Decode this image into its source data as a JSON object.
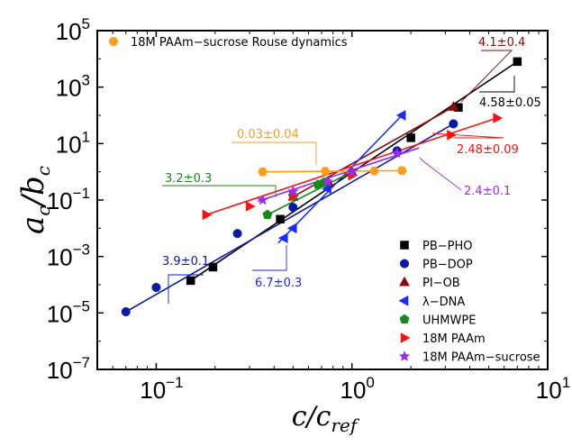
{
  "chart_data": {
    "type": "scatter",
    "xscale": "log",
    "yscale": "log",
    "xlim": [
      0.05,
      10
    ],
    "ylim": [
      1e-07,
      100000.0
    ],
    "xlabel_main": "c/c",
    "xlabel_sub": "ref",
    "ylabel_a": "a",
    "ylabel_a_sub": "c",
    "ylabel_b": "/b",
    "ylabel_b_sub": "c",
    "xticks": [
      {
        "value": 0.1,
        "base": "10",
        "exp": "−1"
      },
      {
        "value": 1,
        "base": "10",
        "exp": "0"
      },
      {
        "value": 10,
        "base": "10",
        "exp": "1"
      }
    ],
    "yticks": [
      {
        "value": 1e-07,
        "base": "10",
        "exp": "−7"
      },
      {
        "value": 1e-05,
        "base": "10",
        "exp": "−5"
      },
      {
        "value": 0.001,
        "base": "10",
        "exp": "−3"
      },
      {
        "value": 0.1,
        "base": "10",
        "exp": "−1"
      },
      {
        "value": 10,
        "base": "10",
        "exp": "1"
      },
      {
        "value": 1000,
        "base": "10",
        "exp": "3"
      },
      {
        "value": 100000,
        "base": "10",
        "exp": "5"
      }
    ],
    "legend_placement": "bottom-right",
    "top_legend": {
      "label": "18M PAAm−sucrose Rouse dynamics",
      "marker": "hexagon",
      "color": "#ff9c1c"
    },
    "series": [
      {
        "name": "PB−PHO",
        "marker": "square",
        "color": "#000000",
        "x": [
          0.15,
          0.195,
          0.43,
          2.0,
          3.5,
          7.0
        ],
        "y": [
          0.00014,
          0.00042,
          0.021,
          16,
          190,
          8000
        ],
        "fit": {
          "x": [
            0.15,
            7.0
          ],
          "y": [
            0.00014,
            8000
          ]
        }
      },
      {
        "name": "PB−DOP",
        "marker": "circle",
        "color": "#0a1aa6",
        "x": [
          0.07,
          0.1,
          0.26,
          0.5,
          1.7,
          3.3
        ],
        "y": [
          1.1e-05,
          8e-05,
          0.0065,
          0.055,
          5.5,
          50
        ],
        "fit": {
          "x": [
            0.07,
            3.3
          ],
          "y": [
            1.1e-05,
            50
          ]
        }
      },
      {
        "name": "PI−OB",
        "marker": "triangle-up",
        "color": "#8b0a0a",
        "x": [
          0.5,
          0.76,
          1.0,
          3.3
        ],
        "y": [
          0.13,
          0.4,
          1.0,
          200
        ],
        "fit": {
          "x": [
            0.5,
            3.3
          ],
          "y": [
            0.13,
            200
          ]
        }
      },
      {
        "name": "λ−DNA",
        "marker": "triangle-left",
        "color": "#1a2bff",
        "x": [
          0.45,
          0.5,
          0.75,
          1.8
        ],
        "y": [
          0.0045,
          0.01,
          0.25,
          100
        ],
        "fit": {
          "x": [
            0.42,
            1.8
          ],
          "y": [
            0.003,
            100
          ]
        }
      },
      {
        "name": "UHMWPE",
        "marker": "pentagon",
        "color": "#168a16",
        "x": [
          0.37,
          0.5,
          0.67,
          0.72
        ],
        "y": [
          0.03,
          0.14,
          0.35,
          0.42
        ],
        "fit": {
          "x": [
            0.37,
            1.0
          ],
          "y": [
            0.03,
            1.0
          ]
        }
      },
      {
        "name": "18M PAAm",
        "marker": "triangle-right",
        "color": "#ff1010",
        "x": [
          0.18,
          0.3,
          0.5,
          1.0,
          3.2,
          5.5
        ],
        "y": [
          0.03,
          0.06,
          0.14,
          0.75,
          20,
          80
        ],
        "fit": {
          "x": [
            0.18,
            5.5
          ],
          "y": [
            0.03,
            80
          ]
        }
      },
      {
        "name": "18M PAAm−sucrose",
        "marker": "star",
        "color": "#9b2bf0",
        "x": [
          0.35,
          0.5,
          0.75,
          1.0,
          1.7
        ],
        "y": [
          0.1,
          0.2,
          0.45,
          1.0,
          4.5
        ],
        "fit": {
          "x": [
            0.33,
            2.2
          ],
          "y": [
            0.09,
            7
          ]
        }
      },
      {
        "name": "18M PAAm−sucrose Rouse dynamics",
        "marker": "hexagon",
        "color": "#ff9c1c",
        "x": [
          0.35,
          0.73,
          1.3,
          1.8
        ],
        "y": [
          1.0,
          1.05,
          1.07,
          1.1
        ],
        "fit": {
          "x": [
            0.35,
            1.8
          ],
          "y": [
            1.0,
            1.1
          ]
        }
      }
    ],
    "annotations": [
      {
        "text": "4.1±0.4",
        "color": "#8b0a0a"
      },
      {
        "text": "4.58±0.05",
        "color": "#000000"
      },
      {
        "text": "0.03±0.04",
        "color": "#ff9c1c"
      },
      {
        "text": "2.48±0.09",
        "color": "#ff1010"
      },
      {
        "text": "3.2±0.3",
        "color": "#168a16"
      },
      {
        "text": "2.4±0.1",
        "color": "#9b2bf0"
      },
      {
        "text": "3.9±0.1",
        "color": "#0a1aa6"
      },
      {
        "text": "6.7±0.3",
        "color": "#1a2bff"
      }
    ]
  }
}
